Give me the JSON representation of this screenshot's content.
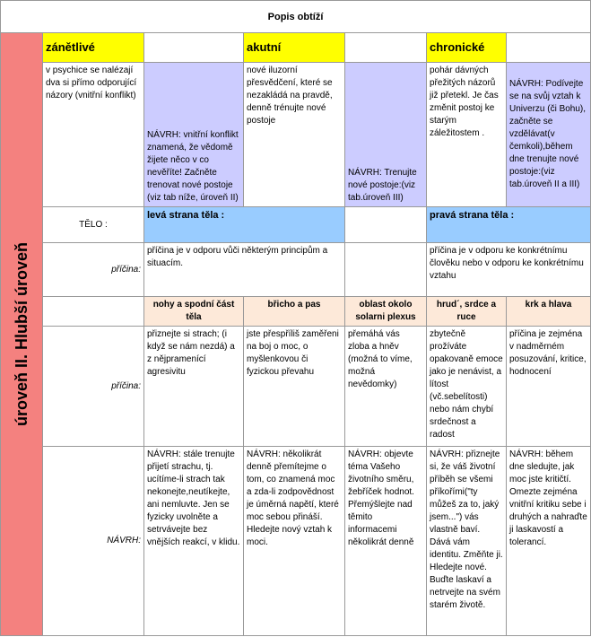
{
  "title": "Popis obtíží",
  "side_label": "úroveň II. Hlubší úroveň",
  "header": [
    "zánětlivé",
    "akutní",
    "chronické"
  ],
  "intro": [
    "v psychice se nalézají dva si přímo odporující názory (vnitřní konflikt)",
    "NÁVRH: vnitřní konflikt znamená, že vědomě žijete něco v co nevěříte! Začněte trenovat nové postoje (viz tab níže, úroveň II)",
    "nové iluzorní přesvědčení, které se nezakládá na pravdě, denně trénujte nové postoje",
    "NÁVRH: Trenujte nové postoje:(viz tab.úroveň III)",
    "pohár dávných přežitých názorů již přetekl. Je čas změnit postoj ke starým záležitostem .",
    "NÁVRH: Podívejte se na svůj vztah k Univerzu (či Bohu), začněte se vzdělávat(v čemkoli),během dne trenujte nové postoje:(viz tab.úroveň II a III)"
  ],
  "body_row": {
    "label": "TĚLO :",
    "left": "levá strana těla :",
    "right": "pravá strana těla :"
  },
  "cause_row": {
    "label": "příčina:",
    "left": "příčina je v odporu vůči některým principům a situacím.",
    "right": "příčina je v odporu ke konkrétnímu člověku nebo v odporu ke konkrétnímu vztahu"
  },
  "body_parts": [
    "nohy a spodní část těla",
    "břicho a pas",
    "oblast okolo solarni plexus",
    "hrud´, srdce a ruce",
    "krk a hlava"
  ],
  "causes": {
    "label": "příčina:",
    "cells": [
      "přiznejte si strach; (i když se nám nezdá) a z nějpramenící agresivitu",
      "jste přespříliš zaměřeni na boj o moc, o myšlenkovou či fyzickou převahu",
      "přemáhá vás zloba a hněv (možná to víme, možná nevědomky)",
      "zbytečně prožíváte opakovaně emoce jako je nenávist, a lítost (vč.sebelítosti) nebo nám chybí srdečnost a radost",
      "příčina je zejména v nadměrném posuzování, kritice, hodnocení"
    ]
  },
  "suggestions": {
    "label": "NÁVRH:",
    "cells": [
      "NÁVRH: stále trenujte přijetí strachu, tj. ucítíme-li strach tak nekonejte,neutíkejte, ani nemluvte. Jen se fyzicky uvolněte a setrvávejte bez vnějších reakcí, v klidu.",
      "NÁVRH: několikrát denně přemítejme o tom, co znamená moc a zda-li zodpovědnost je úměrná napětí, které moc sebou přináší. Hledejte nový vztah k moci.",
      "NÁVRH: objevte téma Vašeho životního směru, žebříček hodnot. Přemýšlejte nad těmito informacemi několikrát denně",
      "NÁVRH: přiznejte si, že váš životní příběh se všemi příkořími(\"ty můžeš za to, jaký jsem...\") vás vlastně baví. Dává vám identitu. Změňte ji. Hledejte nové. Buďte laskaví a netrvejte na svém starém životě.",
      "NÁVRH: během dne sledujte, jak moc jste kritičtí. Omezte zejména vnitřní kritiku sebe i druhých a nahraďte ji laskavostí a tolerancí."
    ]
  }
}
